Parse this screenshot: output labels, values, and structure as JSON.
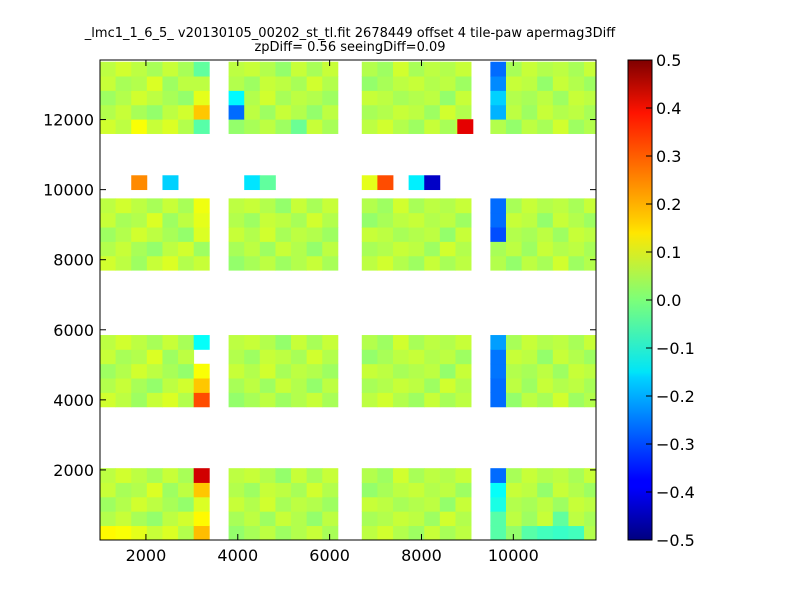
{
  "chart_data": {
    "type": "heatmap",
    "title": "_lmc1_1_6_5_ v20130105_00202_st_tl.fit 2678449 offset 4 tile-paw apermag3Diff",
    "subtitle": "zpDiff= 0.56 seeingDiff=0.09",
    "xlim": [
      1000,
      11800
    ],
    "ylim": [
      0,
      13700
    ],
    "xticks": [
      "2000",
      "4000",
      "6000",
      "8000",
      "10000"
    ],
    "xtick_values": [
      2000,
      4000,
      6000,
      8000,
      10000
    ],
    "yticks": [
      "2000",
      "4000",
      "6000",
      "8000",
      "10000",
      "12000"
    ],
    "ytick_values": [
      2000,
      4000,
      6000,
      8000,
      10000,
      12000
    ],
    "colorbar": {
      "vmin": -0.5,
      "vmax": 0.5,
      "colormap": "jet",
      "ticks": [
        "0.5",
        "0.4",
        "0.3",
        "0.2",
        "0.1",
        "0.0",
        "−0.1",
        "−0.2",
        "−0.3",
        "−0.4",
        "−0.5"
      ],
      "tick_values": [
        0.5,
        0.4,
        0.3,
        0.2,
        0.1,
        0.0,
        -0.1,
        -0.2,
        -0.3,
        -0.4,
        -0.5
      ]
    },
    "cell_size": [
      340,
      410
    ],
    "column_groups": [
      {
        "x0": 1000,
        "ncols": 6
      },
      {
        "x0": 3800,
        "ncols": 7
      },
      {
        "x0": 6700,
        "ncols": 7
      },
      {
        "x0": 9500,
        "ncols": 7
      }
    ],
    "row_bands": [
      {
        "y0": 0,
        "nrows": 5
      },
      {
        "y0": 3800,
        "nrows": 5
      },
      {
        "y0": 7700,
        "nrows": 5
      },
      {
        "y0": 11600,
        "nrows": 5
      }
    ],
    "default_values": [
      [
        0.08,
        0.06,
        0.03,
        0.07,
        0.09,
        0.05,
        0.02,
        0.04,
        0.06,
        0.03,
        0.05,
        0.07,
        0.04,
        0.06,
        0.08,
        0.05,
        0.03,
        0.07,
        0.04,
        0.06,
        0.05,
        0.02,
        0.06,
        0.04,
        0.08,
        0.03,
        0.05,
        0.07
      ],
      [
        0.05,
        0.07,
        0.04,
        0.02,
        0.06,
        0.08,
        0.04,
        0.06,
        0.03,
        0.07,
        0.05,
        0.02,
        0.06,
        0.04,
        0.05,
        0.07,
        0.06,
        0.03,
        0.08,
        0.05,
        0.04,
        0.06,
        0.03,
        0.07,
        0.05,
        0.06,
        0.04,
        0.02
      ],
      [
        0.03,
        0.05,
        0.08,
        0.06,
        0.04,
        0.02,
        0.07,
        0.05,
        0.08,
        0.04,
        0.06,
        0.05,
        0.03,
        0.07,
        0.06,
        0.04,
        0.05,
        0.06,
        0.02,
        0.07,
        0.08,
        0.05,
        0.04,
        0.06,
        0.03,
        0.07,
        0.06,
        0.05
      ],
      [
        0.07,
        0.04,
        0.05,
        0.09,
        0.03,
        0.06,
        0.05,
        0.03,
        0.07,
        0.06,
        0.04,
        0.08,
        0.05,
        0.02,
        0.04,
        0.06,
        0.07,
        0.05,
        0.06,
        0.03,
        0.05,
        0.07,
        0.06,
        0.02,
        0.07,
        0.05,
        0.03,
        0.06
      ],
      [
        0.06,
        0.08,
        0.06,
        0.04,
        0.07,
        0.04,
        0.06,
        0.07,
        0.05,
        0.02,
        0.07,
        0.04,
        0.07,
        0.05,
        0.03,
        0.08,
        0.04,
        0.06,
        0.05,
        0.07,
        0.03,
        0.04,
        0.07,
        0.05,
        0.06,
        0.04,
        0.07,
        0.03
      ]
    ],
    "special_cells": [
      {
        "x": 1000,
        "y": 0,
        "value": 0.13
      },
      {
        "x": 1340,
        "y": 0,
        "value": 0.12
      },
      {
        "x": 1680,
        "y": 0,
        "value": 0.1
      },
      {
        "x": 3040,
        "y": 0,
        "value": 0.19
      },
      {
        "x": 3040,
        "y": 410,
        "value": 0.13
      },
      {
        "x": 3040,
        "y": 820,
        "value": 0.09
      },
      {
        "x": 3040,
        "y": 1230,
        "value": 0.18
      },
      {
        "x": 3040,
        "y": 1640,
        "value": 0.42
      },
      {
        "x": 9500,
        "y": 0,
        "value": -0.04
      },
      {
        "x": 9500,
        "y": 410,
        "value": -0.04
      },
      {
        "x": 9500,
        "y": 820,
        "value": -0.1
      },
      {
        "x": 9500,
        "y": 1230,
        "value": -0.12
      },
      {
        "x": 9500,
        "y": 1640,
        "value": -0.27
      },
      {
        "x": 10180,
        "y": 0,
        "value": -0.04
      },
      {
        "x": 10520,
        "y": 0,
        "value": -0.06
      },
      {
        "x": 10860,
        "y": 0,
        "value": -0.07
      },
      {
        "x": 11200,
        "y": 0,
        "value": -0.06
      },
      {
        "x": 10860,
        "y": 410,
        "value": -0.03
      },
      {
        "x": 3040,
        "y": 3800,
        "value": 0.3
      },
      {
        "x": 3040,
        "y": 4210,
        "value": 0.18
      },
      {
        "x": 3040,
        "y": 4620,
        "value": 0.12
      },
      {
        "x": 3040,
        "y": 5440,
        "value": -0.12
      },
      {
        "x": 9500,
        "y": 3800,
        "value": -0.27
      },
      {
        "x": 9500,
        "y": 4210,
        "value": -0.27
      },
      {
        "x": 9500,
        "y": 4620,
        "value": -0.26
      },
      {
        "x": 9500,
        "y": 5030,
        "value": -0.26
      },
      {
        "x": 9500,
        "y": 5440,
        "value": -0.22
      },
      {
        "x": 3040,
        "y": 7700,
        "value": 0.07
      },
      {
        "x": 3040,
        "y": 8110,
        "value": 0.03
      },
      {
        "x": 3040,
        "y": 8520,
        "value": 0.09
      },
      {
        "x": 3040,
        "y": 8930,
        "value": 0.1
      },
      {
        "x": 3040,
        "y": 9340,
        "value": 0.11
      },
      {
        "x": 9500,
        "y": 8520,
        "value": -0.3
      },
      {
        "x": 9500,
        "y": 8930,
        "value": -0.27
      },
      {
        "x": 9500,
        "y": 9340,
        "value": -0.27
      },
      {
        "x": 3040,
        "y": 11600,
        "value": -0.04
      },
      {
        "x": 3040,
        "y": 12010,
        "value": 0.18
      },
      {
        "x": 3040,
        "y": 12420,
        "value": 0.1
      },
      {
        "x": 3040,
        "y": 12830,
        "value": 0.06
      },
      {
        "x": 3040,
        "y": 13240,
        "value": -0.03
      },
      {
        "x": 3800,
        "y": 12010,
        "value": -0.27
      },
      {
        "x": 3800,
        "y": 12420,
        "value": -0.13
      },
      {
        "x": 1680,
        "y": 11600,
        "value": 0.12
      },
      {
        "x": 8780,
        "y": 11600,
        "value": 0.4
      },
      {
        "x": 9500,
        "y": 12010,
        "value": -0.2
      },
      {
        "x": 9500,
        "y": 12420,
        "value": -0.17
      },
      {
        "x": 9500,
        "y": 12830,
        "value": -0.24
      },
      {
        "x": 9500,
        "y": 13240,
        "value": -0.27
      },
      {
        "x": 5160,
        "y": 11600,
        "value": -0.02
      }
    ],
    "extra_cells": [
      {
        "x": 1680,
        "y": 10000,
        "value": 0.24
      },
      {
        "x": 2360,
        "y": 10000,
        "value": -0.17
      },
      {
        "x": 4140,
        "y": 10000,
        "value": -0.15
      },
      {
        "x": 4480,
        "y": 10000,
        "value": -0.03
      },
      {
        "x": 6700,
        "y": 10000,
        "value": 0.1
      },
      {
        "x": 7040,
        "y": 10000,
        "value": 0.3
      },
      {
        "x": 7720,
        "y": 10000,
        "value": -0.14
      },
      {
        "x": 8060,
        "y": 10000,
        "value": -0.43
      }
    ]
  }
}
